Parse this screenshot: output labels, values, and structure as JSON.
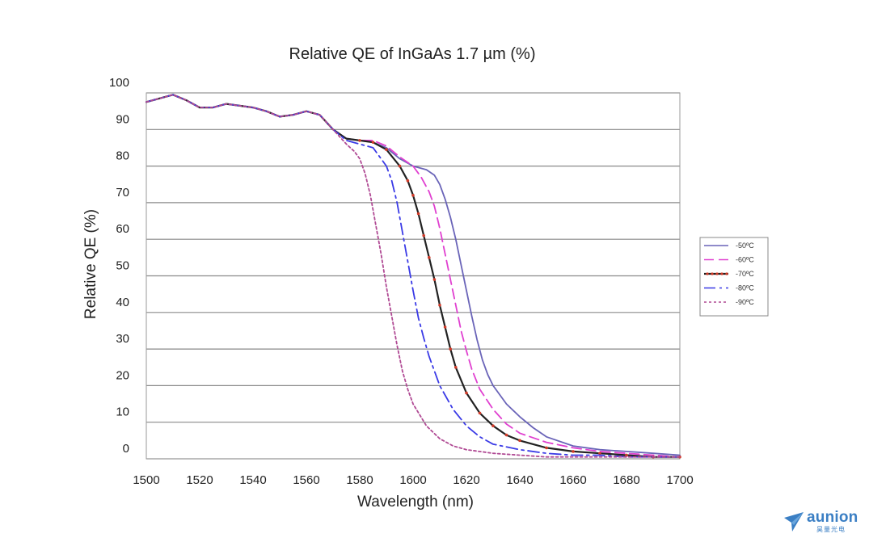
{
  "chart_data": {
    "type": "line",
    "title": "Relative QE of InGaAs 1.7 µm (%)",
    "xlabel": "Wavelength (nm)",
    "ylabel": "Relative QE (%)",
    "xlim": [
      1500,
      1700
    ],
    "ylim": [
      0,
      100
    ],
    "x_ticks": [
      "1500",
      "1520",
      "1540",
      "1560",
      "1580",
      "1600",
      "1620",
      "1640",
      "1660",
      "1680",
      "1700"
    ],
    "y_ticks": [
      "0",
      "10",
      "20",
      "30",
      "40",
      "50",
      "60",
      "70",
      "80",
      "90",
      "100"
    ],
    "grid": "horizontal",
    "legend_position": "right",
    "series": [
      {
        "name": "-50ºC",
        "color": "#6a64b8",
        "dash": "solid",
        "x": [
          1500,
          1505,
          1510,
          1515,
          1520,
          1525,
          1530,
          1535,
          1540,
          1545,
          1550,
          1555,
          1560,
          1565,
          1570,
          1575,
          1580,
          1585,
          1590,
          1595,
          1600,
          1605,
          1608,
          1610,
          1612,
          1614,
          1616,
          1618,
          1620,
          1622,
          1624,
          1626,
          1628,
          1630,
          1635,
          1640,
          1645,
          1650,
          1660,
          1670,
          1680,
          1690,
          1700
        ],
        "y": [
          97.5,
          98.5,
          99.5,
          98,
          96,
          96,
          97,
          96.5,
          96,
          95,
          93.5,
          94,
          95,
          94,
          90,
          87.5,
          87,
          86.5,
          85,
          82,
          80,
          79,
          77.5,
          75,
          71,
          66,
          60,
          53,
          46,
          39,
          32.5,
          27,
          23,
          20,
          15,
          11.5,
          8.5,
          6,
          3.5,
          2.5,
          2,
          1.5,
          1
        ]
      },
      {
        "name": "-60ºC",
        "color": "#e040d0",
        "dash": "12 6",
        "x": [
          1500,
          1505,
          1510,
          1515,
          1520,
          1525,
          1530,
          1535,
          1540,
          1545,
          1550,
          1555,
          1560,
          1565,
          1570,
          1575,
          1580,
          1585,
          1590,
          1595,
          1600,
          1603,
          1606,
          1608,
          1610,
          1612,
          1614,
          1616,
          1618,
          1620,
          1622,
          1625,
          1630,
          1635,
          1640,
          1650,
          1660,
          1670,
          1680,
          1690,
          1700
        ],
        "y": [
          97.5,
          98.5,
          99.5,
          98,
          96,
          96,
          97,
          96.5,
          96,
          95,
          93.5,
          94,
          95,
          94,
          90,
          87.5,
          87,
          87,
          85.5,
          82.5,
          80,
          77,
          73,
          69,
          63,
          56,
          49,
          42,
          35,
          29.5,
          24.5,
          19,
          13.5,
          9.5,
          7,
          4.5,
          3,
          2,
          1.5,
          1,
          0.5
        ]
      },
      {
        "name": "-70ºC",
        "color": "#222222",
        "dash": "solid",
        "markers": "#d23a28",
        "x": [
          1500,
          1505,
          1510,
          1515,
          1520,
          1525,
          1530,
          1535,
          1540,
          1545,
          1550,
          1555,
          1560,
          1565,
          1570,
          1575,
          1580,
          1585,
          1590,
          1595,
          1598,
          1600,
          1602,
          1604,
          1606,
          1608,
          1610,
          1612,
          1614,
          1616,
          1620,
          1625,
          1630,
          1635,
          1640,
          1650,
          1660,
          1670,
          1680,
          1690,
          1700
        ],
        "y": [
          97.5,
          98.5,
          99.5,
          98,
          96,
          96,
          97,
          96.5,
          96,
          95,
          93.5,
          94,
          95,
          94,
          90,
          87.5,
          87,
          86.5,
          84.5,
          80,
          76,
          72,
          67,
          61,
          55,
          49,
          42,
          36,
          30,
          25,
          18,
          12.5,
          9,
          6.5,
          5,
          3,
          2,
          1.5,
          1,
          0.5,
          0.5
        ]
      },
      {
        "name": "-80ºC",
        "color": "#3a3ae6",
        "dash": "14 5 3 5",
        "x": [
          1500,
          1505,
          1510,
          1515,
          1520,
          1525,
          1530,
          1535,
          1540,
          1545,
          1550,
          1555,
          1560,
          1565,
          1570,
          1575,
          1580,
          1585,
          1590,
          1592,
          1594,
          1596,
          1598,
          1600,
          1602,
          1604,
          1606,
          1608,
          1610,
          1615,
          1620,
          1625,
          1630,
          1640,
          1650,
          1660,
          1670,
          1680,
          1690,
          1700
        ],
        "y": [
          97.5,
          98.5,
          99.5,
          98,
          96,
          96,
          97,
          96.5,
          96,
          95,
          93.5,
          94,
          95,
          94,
          90,
          87,
          86,
          85,
          80,
          76,
          70,
          62,
          54,
          46,
          38.5,
          33,
          28,
          24,
          20,
          13.5,
          9,
          6,
          4,
          2.5,
          1.5,
          1,
          1,
          0.5,
          0.5,
          0.5
        ]
      },
      {
        "name": "-90ºC",
        "color": "#b04a94",
        "dash": "3 3",
        "x": [
          1500,
          1505,
          1510,
          1515,
          1520,
          1525,
          1530,
          1535,
          1540,
          1545,
          1550,
          1555,
          1560,
          1565,
          1570,
          1575,
          1578,
          1580,
          1582,
          1584,
          1586,
          1588,
          1590,
          1592,
          1594,
          1596,
          1598,
          1600,
          1605,
          1610,
          1615,
          1620,
          1630,
          1640,
          1650,
          1660,
          1670,
          1680,
          1690,
          1700
        ],
        "y": [
          97.5,
          98.5,
          99.5,
          98,
          96,
          96,
          97,
          96.5,
          96,
          95,
          93.5,
          94,
          95,
          94,
          90,
          86,
          84,
          82,
          78,
          72,
          64,
          56,
          47,
          39,
          31,
          24,
          19,
          15,
          9,
          5.5,
          3.5,
          2.5,
          1.5,
          1,
          0.5,
          0.5,
          0.5,
          0.5,
          0.5,
          0.5
        ]
      }
    ]
  },
  "logo": {
    "text": "aunion",
    "subtext": "昊量光电",
    "color": "#3b7fc4"
  }
}
